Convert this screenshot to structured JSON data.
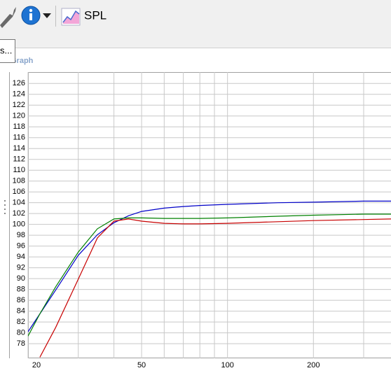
{
  "toolbar": {
    "spl_button": "SPL"
  },
  "tooltip": {
    "text": "s..."
  },
  "panel": {
    "title": "Graph"
  },
  "chart_data": {
    "type": "line",
    "x": [
      20,
      22,
      25,
      30,
      35,
      40,
      45,
      50,
      60,
      70,
      80,
      100,
      150,
      200,
      300,
      374
    ],
    "series": [
      {
        "color": "#0000c8",
        "values": [
          80.2,
          83.5,
          87.9,
          94.3,
          98.1,
          100.3,
          101.6,
          102.4,
          103.0,
          103.3,
          103.5,
          103.7,
          104.0,
          104.1,
          104.3,
          104.3
        ]
      },
      {
        "color": "#008000",
        "values": [
          79.4,
          83.5,
          88.5,
          94.9,
          99.2,
          101.0,
          101.2,
          101.2,
          101.1,
          101.1,
          101.1,
          101.2,
          101.5,
          101.7,
          101.9,
          101.9
        ]
      },
      {
        "color": "#c80000",
        "values": [
          null,
          75.5,
          81.0,
          89.9,
          97.5,
          100.6,
          101.0,
          100.6,
          100.2,
          100.1,
          100.1,
          100.2,
          100.5,
          100.7,
          100.9,
          101.0
        ]
      }
    ],
    "xlim": [
      20,
      374
    ],
    "xscale": "log",
    "xticks": [
      20,
      50,
      100,
      200
    ],
    "xminor": [
      30,
      40,
      60,
      70,
      80,
      90,
      300
    ],
    "ylim": [
      75.3,
      128.1
    ],
    "yticks": [
      78,
      80,
      82,
      84,
      86,
      88,
      90,
      92,
      94,
      96,
      98,
      100,
      102,
      104,
      106,
      108,
      110,
      112,
      114,
      116,
      118,
      120,
      122,
      124,
      126
    ],
    "grid": true
  }
}
